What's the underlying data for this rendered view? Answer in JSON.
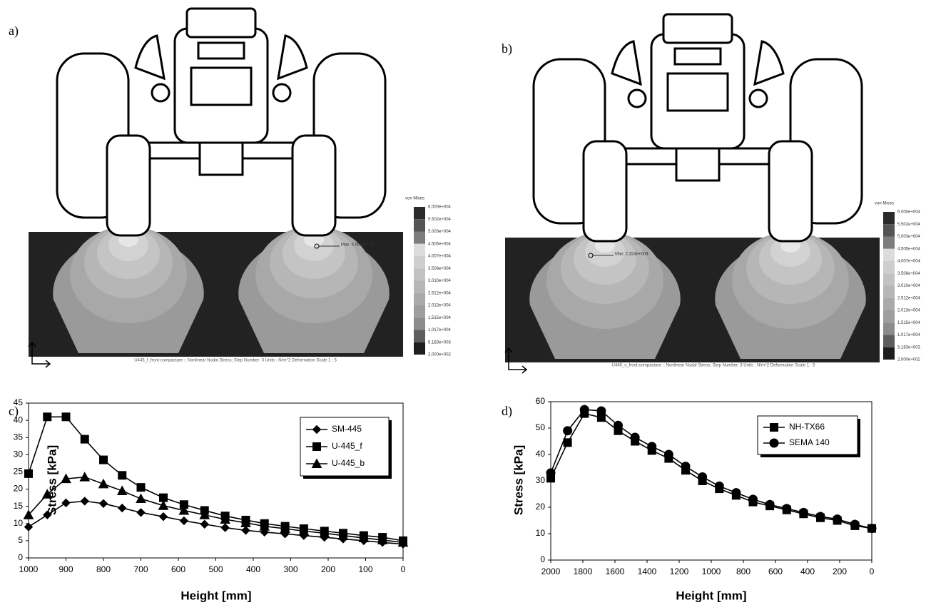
{
  "images": [
    {
      "label": "a)",
      "legend_title": "von Mises",
      "legend_labels": [
        "6.000e+004",
        "5.502e+004",
        "5.003e+004",
        "4.505e+004",
        "4.007e+004",
        "3.508e+004",
        "3.010e+004",
        "2.512e+004",
        "2.013e+004",
        "1.515e+004",
        "1.017e+004",
        "5.183e+003",
        "2.000e+002"
      ],
      "legend_colors": [
        "#2b2b2b",
        "#555555",
        "#7d7d7d",
        "#dcdcdc",
        "#cecece",
        "#c2c2c2",
        "#b6b6b6",
        "#aaaaaa",
        "#9e9e9e",
        "#8c8c8c",
        "#5e5e5e",
        "#1e1e1e"
      ],
      "max_label": "Max: 4.560e+004",
      "caption": "U445_f_front-compactare :: Nonlinear Nodal Stress; Step Number: 3    Units : N/m^2   Deformation Scale  1 : 5"
    },
    {
      "label": "b)",
      "legend_title": "von Mises",
      "legend_labels": [
        "6.000e+004",
        "5.502e+004",
        "5.003e+004",
        "4.505e+004",
        "4.007e+004",
        "3.508e+004",
        "3.010e+004",
        "2.512e+004",
        "2.013e+004",
        "1.515e+004",
        "1.017e+004",
        "5.183e+003",
        "2.000e+002"
      ],
      "legend_colors": [
        "#2b2b2b",
        "#555555",
        "#7d7d7d",
        "#dcdcdc",
        "#cecece",
        "#c2c2c2",
        "#b6b6b6",
        "#aaaaaa",
        "#9e9e9e",
        "#8c8c8c",
        "#5e5e5e",
        "#1e1e1e"
      ],
      "max_label": "Max: 2.324e+004",
      "caption": "U445_s_front-compactare :: Nonlinear Nodal Stress; Step Number: 3    Units : N/m^2   Deformation Scale  1 : 5"
    }
  ],
  "chart_data": [
    {
      "label": "c)",
      "type": "line",
      "x_label": "Height [mm]",
      "y_label": "Stress [kPa]",
      "x": [
        1000,
        950,
        900,
        850,
        800,
        750,
        700,
        640,
        585,
        530,
        475,
        420,
        370,
        315,
        265,
        210,
        160,
        105,
        55,
        0
      ],
      "series": [
        {
          "name": "SM-445",
          "color": "#000000",
          "marker": "diamond",
          "values": [
            9,
            12.5,
            16,
            16.5,
            15.8,
            14.5,
            13.2,
            12,
            10.8,
            9.8,
            8.8,
            8,
            7.5,
            7,
            6.5,
            6,
            5.5,
            5,
            4.5,
            4
          ]
        },
        {
          "name": "U-445_f",
          "color": "#000000",
          "marker": "square",
          "values": [
            24.5,
            41,
            41,
            34.5,
            28.5,
            24,
            20.5,
            17.5,
            15.5,
            13.8,
            12.2,
            11,
            10,
            9.2,
            8.5,
            7.8,
            7.2,
            6.5,
            6,
            5
          ]
        },
        {
          "name": "U-445_b",
          "color": "#000000",
          "marker": "triangle",
          "values": [
            12.5,
            18.5,
            23,
            23.5,
            21.5,
            19.5,
            17.2,
            15.2,
            13.8,
            12.5,
            11.2,
            10.2,
            9.2,
            8.5,
            7.8,
            7.2,
            6.5,
            5.8,
            5.2,
            4.5
          ]
        }
      ],
      "xlim": [
        1000,
        0
      ],
      "xticks": [
        1000,
        900,
        800,
        700,
        600,
        500,
        400,
        300,
        200,
        100,
        0
      ],
      "ylim": [
        0,
        45
      ],
      "yticks": [
        0,
        5,
        10,
        15,
        20,
        25,
        30,
        35,
        40,
        45
      ],
      "grid": false,
      "legend": "upper right"
    },
    {
      "label": "d)",
      "type": "line",
      "x_label": "Height [mm]",
      "y_label": "Stress [kPa]",
      "x": [
        2000,
        1895,
        1790,
        1685,
        1580,
        1475,
        1370,
        1265,
        1160,
        1055,
        950,
        845,
        740,
        635,
        530,
        425,
        320,
        215,
        105,
        0
      ],
      "series": [
        {
          "name": "NH-TX66",
          "color": "#000000",
          "marker": "square",
          "values": [
            31,
            44.5,
            55.5,
            54,
            49,
            45,
            41.5,
            38.5,
            34,
            30,
            27,
            24.5,
            22,
            20.5,
            19,
            17.5,
            16,
            15,
            13,
            12
          ]
        },
        {
          "name": "SEMA 140",
          "color": "#000000",
          "marker": "circle",
          "values": [
            33,
            49,
            57,
            56.5,
            51,
            46.5,
            43,
            40,
            35.5,
            31.5,
            28,
            25.5,
            23,
            21,
            19.5,
            18,
            16.5,
            15.5,
            13.5,
            12
          ]
        }
      ],
      "xlim": [
        2000,
        0
      ],
      "xticks": [
        2000,
        1800,
        1600,
        1400,
        1200,
        1000,
        800,
        600,
        400,
        200,
        0
      ],
      "ylim": [
        0,
        60
      ],
      "yticks": [
        0,
        10,
        20,
        30,
        40,
        50,
        60
      ],
      "grid": false,
      "legend": "upper right"
    }
  ]
}
